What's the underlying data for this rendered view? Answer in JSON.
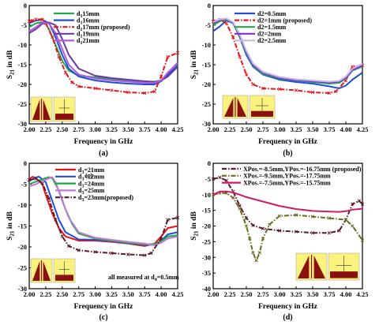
{
  "colors": {
    "black": "#000000",
    "red": "#e8141c",
    "blue": "#1f4fd9",
    "green": "#1fa84a",
    "purple": "#a33bbf",
    "violet": "#b25cd6",
    "crimson": "#c01030",
    "olive": "#6a6a20",
    "magenta": "#d21a6a",
    "inset_bg": "#fbf27e",
    "inset_copper": "#8b1010"
  },
  "chart_data": [
    {
      "type": "line",
      "panel_label": "(a)",
      "xlabel": "Frequency in GHz",
      "ylabel": "S21 in dB",
      "xlim": [
        2.0,
        4.25
      ],
      "ylim": [
        -30,
        0
      ],
      "xticks": [
        "2.00",
        "2.25",
        "2.50",
        "2.75",
        "3.00",
        "3.25",
        "3.50",
        "3.75",
        "4.00",
        "4.25"
      ],
      "yticks": [
        "0",
        "-5",
        "-10",
        "-15",
        "-20",
        "-25",
        "-30"
      ],
      "legend_position": "top-center",
      "series": [
        {
          "name": "d1 15mm",
          "sub": "1",
          "label_pre": "d",
          "label_post": "15mm",
          "color": "#1fa84a",
          "style": "solid",
          "x": [
            2.0,
            2.1,
            2.2,
            2.25,
            2.3,
            2.4,
            2.5,
            2.6,
            2.75,
            3.0,
            3.25,
            3.5,
            3.75,
            3.9,
            4.0,
            4.1,
            4.25
          ],
          "y": [
            -5.5,
            -4.5,
            -4.2,
            -4.6,
            -6,
            -10,
            -14,
            -16.5,
            -17.8,
            -18.2,
            -18.6,
            -19,
            -19.2,
            -19.3,
            -19,
            -18,
            -15
          ]
        },
        {
          "name": "d1 16mm",
          "sub": "1",
          "label_pre": "d",
          "label_post": "16mm",
          "color": "#1f4fd9",
          "style": "solid",
          "x": [
            2.0,
            2.1,
            2.2,
            2.3,
            2.4,
            2.5,
            2.6,
            2.75,
            3.0,
            3.25,
            3.5,
            3.75,
            3.9,
            4.0,
            4.1,
            4.25
          ],
          "y": [
            -4.5,
            -3.8,
            -3.6,
            -4.5,
            -8,
            -12.5,
            -16,
            -18,
            -19,
            -19.5,
            -19.8,
            -20,
            -20,
            -19.2,
            -17.5,
            -15.2
          ]
        },
        {
          "name": "d1 17mm (proposed)",
          "sub": "1",
          "label_pre": "d",
          "label_post": "17mm (proposed)",
          "color": "#e8141c",
          "style": "dashdot",
          "x": [
            2.0,
            2.05,
            2.1,
            2.2,
            2.25,
            2.35,
            2.45,
            2.55,
            2.65,
            2.75,
            3.0,
            3.25,
            3.5,
            3.75,
            3.9,
            4.0,
            4.1,
            4.25
          ],
          "y": [
            -4,
            -3.8,
            -3.5,
            -3.5,
            -4.5,
            -8,
            -13,
            -17,
            -19.5,
            -20.5,
            -21,
            -21.5,
            -22,
            -22.2,
            -21.8,
            -18,
            -13,
            -12
          ]
        },
        {
          "name": "d1 19mm",
          "sub": "1",
          "label_pre": "d",
          "label_post": "19mm",
          "color": "#6a3aa8",
          "style": "solid",
          "x": [
            2.0,
            2.1,
            2.2,
            2.3,
            2.4,
            2.5,
            2.6,
            2.75,
            3.0,
            3.25,
            3.5,
            3.75,
            3.9,
            4.0,
            4.1,
            4.25
          ],
          "y": [
            -7,
            -6,
            -4.6,
            -4.3,
            -5,
            -8.5,
            -12.5,
            -16,
            -17.8,
            -18.4,
            -18.8,
            -19.2,
            -19.4,
            -19,
            -18,
            -15.5
          ]
        },
        {
          "name": "d1 21mm",
          "sub": "1",
          "label_pre": "d",
          "label_post": "21mm",
          "color": "#b25cd6",
          "style": "solid",
          "x": [
            2.0,
            2.1,
            2.2,
            2.3,
            2.4,
            2.5,
            2.6,
            2.75,
            3.0,
            3.25,
            3.5,
            3.75,
            3.9,
            4.0,
            4.1,
            4.25
          ],
          "y": [
            -6.5,
            -5.5,
            -4.3,
            -4.6,
            -7,
            -11,
            -15,
            -17.5,
            -18.5,
            -19,
            -19.3,
            -19.6,
            -19.6,
            -19,
            -17,
            -14.5
          ]
        }
      ]
    },
    {
      "type": "line",
      "panel_label": "(b)",
      "xlabel": "Frequency in GHz",
      "ylabel": "S21 in dB",
      "xlim": [
        2.0,
        4.25
      ],
      "ylim": [
        -30,
        0
      ],
      "xticks": [
        "2.00",
        "2.25",
        "2.50",
        "2.75",
        "3.00",
        "3.25",
        "3.50",
        "3.75",
        "4.00",
        "4.25"
      ],
      "yticks": [
        "0",
        "-5",
        "-10",
        "-15",
        "-20",
        "-25",
        "-30"
      ],
      "legend_position": "top-center",
      "series": [
        {
          "name": "d2=0.5mm",
          "color": "#1f4fd9",
          "style": "solid",
          "x": [
            2.0,
            2.1,
            2.2,
            2.3,
            2.4,
            2.5,
            2.6,
            2.75,
            3.0,
            3.25,
            3.5,
            3.75,
            3.9,
            4.0,
            4.1,
            4.25
          ],
          "y": [
            -6.5,
            -5.3,
            -3.8,
            -4.5,
            -8,
            -12.5,
            -15.5,
            -17.5,
            -18.8,
            -19.4,
            -19.8,
            -20.5,
            -21,
            -20.3,
            -18.8,
            -17
          ]
        },
        {
          "name": "d2=1mm (proposed)",
          "color": "#e8141c",
          "style": "dashdot",
          "x": [
            2.0,
            2.1,
            2.2,
            2.3,
            2.4,
            2.5,
            2.6,
            2.75,
            3.0,
            3.25,
            3.5,
            3.75,
            3.85,
            4.0,
            4.1,
            4.25
          ],
          "y": [
            -4,
            -3.6,
            -4.5,
            -8,
            -13,
            -17.5,
            -20,
            -21,
            -21.2,
            -21.5,
            -22,
            -22.2,
            -21.8,
            -19,
            -15.5,
            -15.2
          ]
        },
        {
          "name": "d2=1.5mm",
          "color": "#1fa84a",
          "style": "solid",
          "x": [
            2.0,
            2.1,
            2.2,
            2.3,
            2.4,
            2.5,
            2.6,
            2.75,
            3.0,
            3.25,
            3.5,
            3.75,
            3.9,
            4.0,
            4.1,
            4.25
          ],
          "y": [
            -5,
            -4,
            -3.6,
            -4.4,
            -8,
            -12,
            -15.3,
            -17.3,
            -18.5,
            -19,
            -19.4,
            -19.8,
            -19.6,
            -18.5,
            -16.5,
            -15.5
          ]
        },
        {
          "name": "d2=2mm",
          "color": "#8a2be2",
          "style": "solid",
          "x": [
            2.0,
            2.1,
            2.2,
            2.3,
            2.4,
            2.5,
            2.6,
            2.75,
            3.0,
            3.25,
            3.5,
            3.75,
            3.9,
            4.0,
            4.1,
            4.25
          ],
          "y": [
            -4.5,
            -3.7,
            -3.4,
            -4.3,
            -7.5,
            -11.8,
            -15,
            -17,
            -18.3,
            -18.9,
            -19.2,
            -19.5,
            -19.3,
            -18.3,
            -16.3,
            -15.2
          ]
        },
        {
          "name": "d2=2.5mm",
          "color": "#c8b8e8",
          "style": "solid",
          "x": [
            2.0,
            2.1,
            2.2,
            2.3,
            2.4,
            2.5,
            2.6,
            2.75,
            3.0,
            3.25,
            3.5,
            3.75,
            3.9,
            4.0,
            4.1,
            4.25
          ],
          "y": [
            -4.2,
            -3.5,
            -3.3,
            -4.2,
            -7.3,
            -11.5,
            -14.7,
            -16.8,
            -18.1,
            -18.7,
            -19,
            -19.3,
            -19.1,
            -18,
            -16,
            -14.8
          ]
        }
      ]
    },
    {
      "type": "line",
      "panel_label": "(c)",
      "xlabel": "Frequency in GHz",
      "ylabel": "S21 in dB",
      "xlim": [
        2.0,
        4.25
      ],
      "ylim": [
        -30,
        0
      ],
      "xticks": [
        "2.00",
        "2.25",
        "2.50",
        "2.75",
        "3.00",
        "3.25",
        "3.50",
        "3.75",
        "4.00",
        "4.25"
      ],
      "yticks": [
        "0",
        "-5",
        "-10",
        "-15",
        "-20",
        "-25",
        "-30"
      ],
      "legend_position": "top-center",
      "annotation": "all measured at d4=0.5mm",
      "annotation_pre": "all measured at d",
      "annotation_sub": "4",
      "annotation_post": "=0.5mm",
      "stray_label": "(c)",
      "series": [
        {
          "name": "d3=21mm",
          "sub": "3",
          "label_pre": "d",
          "label_post": "=21mm",
          "color": "#e8141c",
          "style": "solid",
          "x": [
            2.0,
            2.05,
            2.1,
            2.2,
            2.25,
            2.35,
            2.45,
            2.55,
            2.75,
            3.0,
            3.25,
            3.5,
            3.75,
            3.9,
            4.0,
            4.1,
            4.25
          ],
          "y": [
            -3.8,
            -3.2,
            -3.5,
            -5,
            -7.5,
            -12,
            -15.5,
            -17.5,
            -18.5,
            -18.5,
            -18.8,
            -19.2,
            -19.8,
            -19.2,
            -17.5,
            -15.5,
            -15
          ]
        },
        {
          "name": "d3=22mm",
          "sub": "3",
          "label_pre": "d",
          "label_post": "=22mm",
          "color": "#1f4fd9",
          "style": "solid",
          "x": [
            2.0,
            2.1,
            2.15,
            2.25,
            2.35,
            2.45,
            2.55,
            2.75,
            3.0,
            3.25,
            3.5,
            3.75,
            3.9,
            4.0,
            4.1,
            4.25
          ],
          "y": [
            -4.2,
            -3.4,
            -3.2,
            -4.5,
            -9,
            -13.5,
            -16.5,
            -18.2,
            -18.3,
            -18.6,
            -19.1,
            -19.5,
            -19.5,
            -18.5,
            -17,
            -16.5
          ]
        },
        {
          "name": "d3=24mm",
          "sub": "3",
          "label_pre": "d",
          "label_post": "=24mm",
          "color": "#1fa84a",
          "style": "solid",
          "x": [
            2.0,
            2.1,
            2.2,
            2.3,
            2.35,
            2.45,
            2.55,
            2.65,
            2.75,
            3.0,
            3.25,
            3.5,
            3.75,
            3.9,
            4.0,
            4.1,
            4.25
          ],
          "y": [
            -5,
            -4.4,
            -3.8,
            -3.3,
            -3.6,
            -6.5,
            -11,
            -14.5,
            -16.8,
            -18,
            -18.5,
            -19,
            -19.4,
            -19.3,
            -18.6,
            -17.5,
            -17.2
          ]
        },
        {
          "name": "d3=25mm",
          "sub": "3",
          "label_pre": "d",
          "label_post": "=25mm",
          "color": "#c07ad8",
          "style": "solid",
          "x": [
            2.0,
            2.1,
            2.2,
            2.3,
            2.35,
            2.4,
            2.5,
            2.6,
            2.75,
            3.0,
            3.25,
            3.5,
            3.75,
            3.9,
            4.0,
            4.1,
            4.25
          ],
          "y": [
            -5.5,
            -5,
            -4.2,
            -3.6,
            -3.3,
            -4.5,
            -9,
            -13,
            -16.5,
            -17.8,
            -18.3,
            -18.8,
            -19.2,
            -19.6,
            -19,
            -18,
            -17.5
          ]
        },
        {
          "name": "d3=23mm(proposed)",
          "sub": "3",
          "label_pre": "d",
          "label_post": "=23mm(proposed)",
          "color": "#5a1a2a",
          "style": "dashdot",
          "x": [
            2.0,
            2.1,
            2.2,
            2.3,
            2.4,
            2.5,
            2.6,
            2.75,
            3.0,
            3.25,
            3.5,
            3.75,
            3.85,
            4.0,
            4.1,
            4.25
          ],
          "y": [
            -4,
            -3.7,
            -4.8,
            -8.5,
            -13.5,
            -17.5,
            -19.8,
            -20.8,
            -21.2,
            -21.5,
            -21.8,
            -22,
            -21.5,
            -18,
            -13.5,
            -13
          ]
        }
      ]
    },
    {
      "type": "line",
      "panel_label": "(d)",
      "xlabel": "Frequency in GHz",
      "ylabel": "S21 in dB",
      "xlim": [
        2.0,
        4.25
      ],
      "ylim": [
        -40,
        0
      ],
      "xticks": [
        "2.00",
        "2.25",
        "2.50",
        "2.75",
        "3.00",
        "3.25",
        "3.50",
        "3.75",
        "4.00",
        "4.25"
      ],
      "yticks": [
        "0",
        "-5",
        "-10",
        "-15",
        "-20",
        "-25",
        "-30",
        "-35",
        "-40"
      ],
      "legend_position": "top",
      "series": [
        {
          "name": "XPos.=-8.5mm,YPos.=-16.75mm (proposed)",
          "color": "#5a1a2a",
          "style": "dashdot",
          "x": [
            2.0,
            2.1,
            2.2,
            2.3,
            2.4,
            2.5,
            2.6,
            2.75,
            3.0,
            3.25,
            3.5,
            3.75,
            3.9,
            4.0,
            4.1,
            4.2,
            4.25
          ],
          "y": [
            -5,
            -4.5,
            -5.5,
            -9,
            -13.5,
            -17.5,
            -19.8,
            -20.8,
            -21.5,
            -21.8,
            -22.2,
            -22.2,
            -21.5,
            -18,
            -13,
            -12,
            -13
          ]
        },
        {
          "name": "XPos.=-9.5mm,YPos.=-17.75mm",
          "color": "#6a6a20",
          "style": "dashdot",
          "x": [
            2.0,
            2.1,
            2.2,
            2.3,
            2.4,
            2.5,
            2.55,
            2.6,
            2.65,
            2.7,
            2.75,
            2.85,
            3.0,
            3.25,
            3.5,
            3.75,
            4.0,
            4.1,
            4.25
          ],
          "y": [
            -10,
            -9.5,
            -9.5,
            -11,
            -14.5,
            -20,
            -24,
            -28.5,
            -31,
            -28.5,
            -24,
            -19.5,
            -16.8,
            -16.5,
            -17,
            -17.5,
            -18,
            -20,
            -24.5
          ]
        },
        {
          "name": "XPos.=-7.5mm,YPos.=-15.75mm",
          "color": "#d21a6a",
          "style": "solid",
          "x": [
            2.0,
            2.1,
            2.2,
            2.3,
            2.4,
            2.5,
            2.75,
            3.0,
            3.25,
            3.5,
            3.75,
            3.9,
            4.0,
            4.1,
            4.25
          ],
          "y": [
            -10,
            -9,
            -9,
            -9.3,
            -10,
            -10.8,
            -12.2,
            -13.6,
            -14.6,
            -15.2,
            -15.4,
            -15.5,
            -15.3,
            -14.8,
            -14.5
          ]
        }
      ]
    }
  ]
}
